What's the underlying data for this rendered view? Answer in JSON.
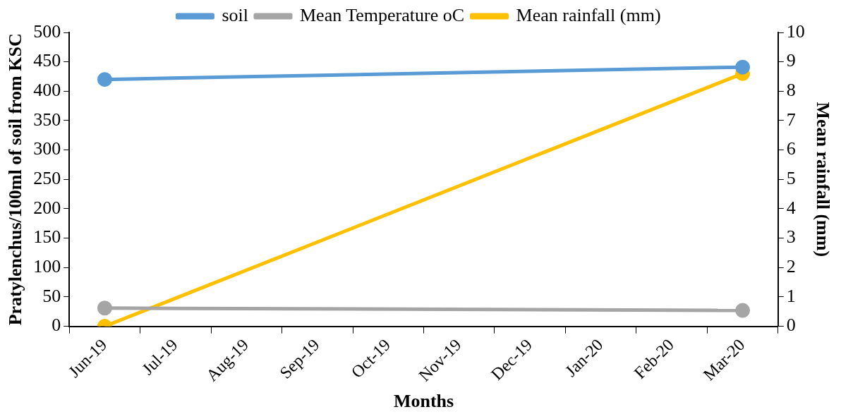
{
  "chart_data": {
    "type": "line",
    "xlabel": "Months",
    "ylabel": "Pratylenchus/100ml of soil from KSC",
    "y2label": "Mean rainfall (mm)",
    "categories": [
      "Jun-19",
      "Jul-19",
      "Aug-19",
      "Sep-19",
      "Oct-19",
      "Nov-19",
      "Dec-19",
      "Jan-20",
      "Feb-20",
      "Mar-20"
    ],
    "series": [
      {
        "name": "soil",
        "color": "#5b9bd5",
        "values": [
          420,
          null,
          null,
          null,
          null,
          null,
          null,
          null,
          null,
          441
        ]
      },
      {
        "name": "Mean Temperature oC",
        "color": "#a5a5a5",
        "values": [
          31,
          null,
          null,
          null,
          null,
          null,
          null,
          null,
          null,
          27
        ]
      },
      {
        "name": "Mean rainfall (mm)",
        "color": "#ffc000",
        "axis": "y2",
        "values": [
          0,
          null,
          null,
          null,
          null,
          null,
          null,
          null,
          null,
          8.6
        ]
      }
    ],
    "ylim": [
      0,
      500
    ],
    "yticks": [
      0,
      50,
      100,
      150,
      200,
      250,
      300,
      350,
      400,
      450,
      500
    ],
    "y2lim": [
      0,
      10
    ],
    "y2ticks": [
      0,
      1,
      2,
      3,
      4,
      5,
      6,
      7,
      8,
      9,
      10
    ],
    "grid": false,
    "legend": "top",
    "marker": "circle",
    "line_style": "solid"
  }
}
